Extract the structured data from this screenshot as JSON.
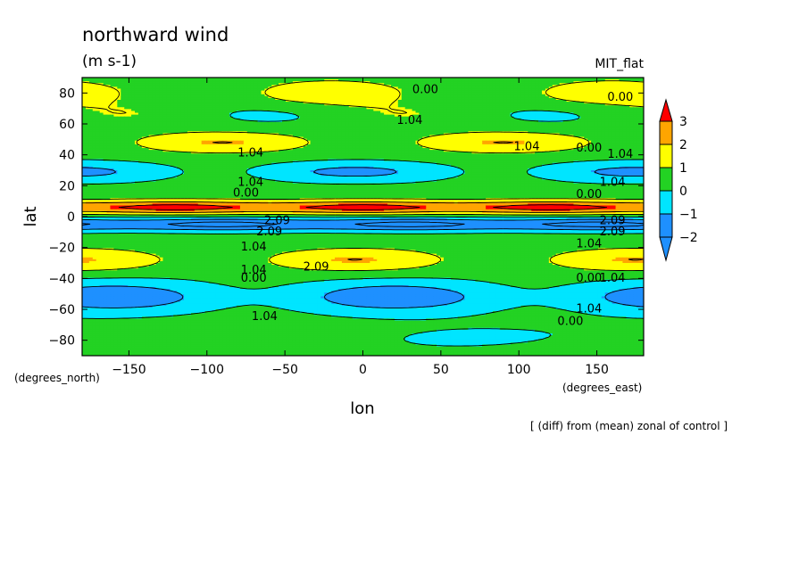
{
  "chart_data": {
    "type": "heatmap",
    "title": "northward wind",
    "subtitle": "(m s-1)",
    "model": "MIT_flat",
    "xlabel": "lon",
    "ylabel": "lat",
    "x_unit_label": "(degrees_east)",
    "y_unit_label": "(degrees_north)",
    "footnote": "[ (diff) from (mean) zonal of control ]",
    "xlim": [
      -180,
      180
    ],
    "ylim": [
      -90,
      90
    ],
    "x_ticks": [
      -150,
      -100,
      -50,
      0,
      50,
      100,
      150
    ],
    "x_tick_labels": [
      "−150",
      "−100",
      "−50",
      "0",
      "50",
      "100",
      "150"
    ],
    "y_ticks": [
      -80,
      -60,
      -40,
      -20,
      0,
      20,
      40,
      60,
      80
    ],
    "y_tick_labels": [
      "−80",
      "−60",
      "−40",
      "−20",
      "0",
      "20",
      "40",
      "60",
      "80"
    ],
    "colorbar": {
      "levels": [
        -2,
        -1,
        0,
        1,
        2,
        3
      ],
      "labels": [
        "−2",
        "−1",
        "0",
        "1",
        "2",
        "3"
      ],
      "colors": [
        "#1e90ff",
        "#00e5ff",
        "#23d223",
        "#ffff00",
        "#ffa500",
        "#ff0000"
      ],
      "extend": "both"
    },
    "contour_interval": 1.04,
    "contour_labels": [
      {
        "text": "0.00",
        "lon": 40,
        "lat": 80
      },
      {
        "text": "0.00",
        "lon": 165,
        "lat": 75
      },
      {
        "text": "1.04",
        "lon": 30,
        "lat": 60
      },
      {
        "text": "1.04",
        "lon": 105,
        "lat": 43
      },
      {
        "text": "0.00",
        "lon": 145,
        "lat": 42
      },
      {
        "text": "1.04",
        "lon": 165,
        "lat": 38
      },
      {
        "text": "1.04",
        "lon": -72,
        "lat": 39
      },
      {
        "text": "1.04",
        "lon": -72,
        "lat": 20
      },
      {
        "text": "0.00",
        "lon": -75,
        "lat": 13
      },
      {
        "text": "1.04",
        "lon": 160,
        "lat": 20
      },
      {
        "text": "0.00",
        "lon": 145,
        "lat": 12
      },
      {
        "text": "2.09",
        "lon": -55,
        "lat": -5
      },
      {
        "text": "2.09",
        "lon": -60,
        "lat": -12
      },
      {
        "text": "2.09",
        "lon": 160,
        "lat": -5
      },
      {
        "text": "2.09",
        "lon": 160,
        "lat": -12
      },
      {
        "text": "1.04",
        "lon": -70,
        "lat": -22
      },
      {
        "text": "1.04",
        "lon": 145,
        "lat": -20
      },
      {
        "text": "2.09",
        "lon": -30,
        "lat": -35
      },
      {
        "text": "1.04",
        "lon": -70,
        "lat": -37
      },
      {
        "text": "0.00",
        "lon": -70,
        "lat": -42
      },
      {
        "text": "0.00",
        "lon": 145,
        "lat": -42
      },
      {
        "text": "1.04",
        "lon": 160,
        "lat": -42
      },
      {
        "text": "1.04",
        "lon": 145,
        "lat": -62
      },
      {
        "text": "1.04",
        "lon": -63,
        "lat": -67
      },
      {
        "text": "0.00",
        "lon": 133,
        "lat": -70
      }
    ]
  }
}
